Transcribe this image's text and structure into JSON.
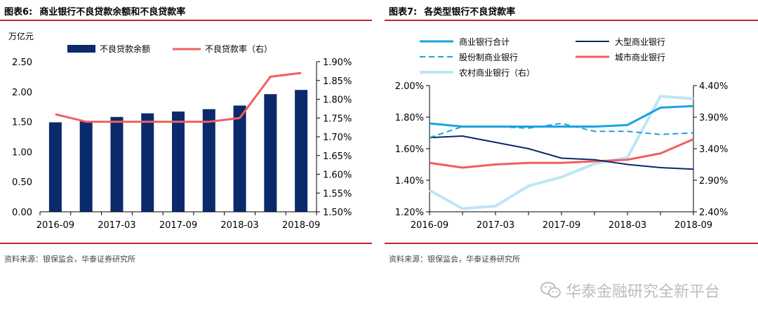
{
  "watermark": "华泰金融研究全新平台",
  "watermark_icon": "wechat-icon",
  "colors": {
    "rule": "#c0272d",
    "navy": "#0b2a6b",
    "salmon": "#ef5f5f",
    "cyan": "#1aa3df",
    "lightcyan": "#bde6f7"
  },
  "chart_data": [
    {
      "type": "bar",
      "figure_num": "图表6:",
      "title": "商业银行不良贷款余额和不良贷款率",
      "source": "资料来源：银保监会，华泰证券研究所",
      "y_unit": "万亿元",
      "categories": [
        "2016-09",
        "2016-12",
        "2017-03",
        "2017-06",
        "2017-09",
        "2017-12",
        "2018-03",
        "2018-06",
        "2018-09"
      ],
      "x_tick_labels": [
        "2016-09",
        "2017-03",
        "2017-09",
        "2018-03",
        "2018-09"
      ],
      "ylim": [
        0,
        2.5
      ],
      "y_ticks": [
        "0.00",
        "0.50",
        "1.00",
        "1.50",
        "2.00",
        "2.50"
      ],
      "y2lim": [
        1.5,
        1.9
      ],
      "y2_ticks": [
        "1.50%",
        "1.55%",
        "1.60%",
        "1.65%",
        "1.70%",
        "1.75%",
        "1.80%",
        "1.85%",
        "1.90%"
      ],
      "series": [
        {
          "name": "不良贷款余额",
          "kind": "bar",
          "axis": "left",
          "color": "#0b2a6b",
          "values": [
            1.49,
            1.51,
            1.58,
            1.64,
            1.67,
            1.71,
            1.77,
            1.96,
            2.03
          ]
        },
        {
          "name": "不良贷款率（右）",
          "kind": "line",
          "axis": "right",
          "color": "#ef5f5f",
          "values": [
            1.76,
            1.74,
            1.74,
            1.74,
            1.74,
            1.74,
            1.75,
            1.86,
            1.87
          ]
        }
      ],
      "legend": "top",
      "grid": false
    },
    {
      "type": "line",
      "figure_num": "图表7:",
      "title": "各类型银行不良贷款率",
      "source": "资料来源：银保监会，华泰证券研究所",
      "categories": [
        "2016-09",
        "2016-12",
        "2017-03",
        "2017-06",
        "2017-09",
        "2017-12",
        "2018-03",
        "2018-06",
        "2018-09"
      ],
      "x_tick_labels": [
        "2016-09",
        "2017-03",
        "2017-09",
        "2018-03",
        "2018-09"
      ],
      "ylim": [
        1.2,
        2.0
      ],
      "y_ticks": [
        "1.20%",
        "1.40%",
        "1.60%",
        "1.80%",
        "2.00%"
      ],
      "y2lim": [
        2.4,
        4.4
      ],
      "y2_ticks": [
        "2.40%",
        "2.90%",
        "3.40%",
        "3.90%",
        "4.40%"
      ],
      "series": [
        {
          "name": "商业银行合计",
          "axis": "left",
          "color": "#1aa3df",
          "style": "solid",
          "width": 3,
          "values": [
            1.76,
            1.74,
            1.74,
            1.74,
            1.74,
            1.74,
            1.75,
            1.86,
            1.87
          ]
        },
        {
          "name": "大型商业银行",
          "axis": "left",
          "color": "#0b2a6b",
          "style": "solid",
          "width": 2,
          "values": [
            1.67,
            1.68,
            1.64,
            1.6,
            1.54,
            1.53,
            1.5,
            1.48,
            1.47
          ]
        },
        {
          "name": "股份制商业银行",
          "axis": "left",
          "color": "#1aa3df",
          "style": "dashed",
          "width": 2,
          "values": [
            1.67,
            1.74,
            1.74,
            1.73,
            1.76,
            1.71,
            1.71,
            1.69,
            1.7
          ]
        },
        {
          "name": "城市商业银行",
          "axis": "left",
          "color": "#ef5f5f",
          "style": "solid",
          "width": 3,
          "values": [
            1.51,
            1.48,
            1.5,
            1.51,
            1.51,
            1.52,
            1.53,
            1.57,
            1.66
          ]
        },
        {
          "name": "农村商业银行（右）",
          "axis": "right",
          "color": "#bde6f7",
          "style": "solid",
          "width": 4,
          "values": [
            2.74,
            2.45,
            2.49,
            2.81,
            2.95,
            3.16,
            3.26,
            4.23,
            4.19
          ]
        }
      ],
      "legend": "top",
      "grid": false
    }
  ]
}
